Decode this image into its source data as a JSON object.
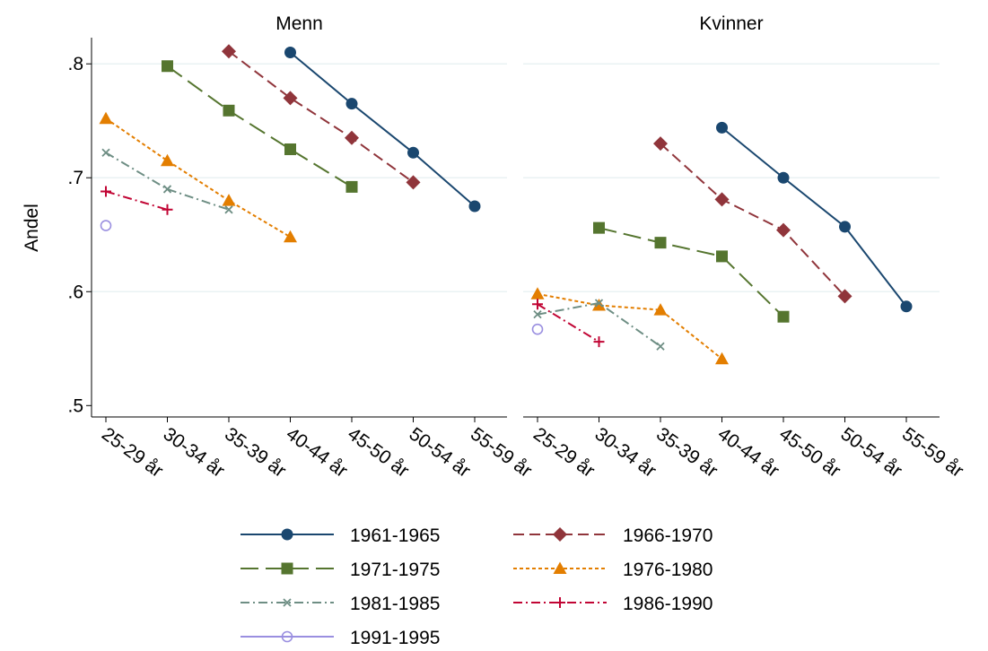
{
  "chart_data": [
    {
      "type": "line",
      "title": "Menn",
      "y_label": "Andel",
      "categories": [
        "25-29 år",
        "30-34 år",
        "35-39 år",
        "40-44 år",
        "45-50 år",
        "50-54 år",
        "55-59 år"
      ],
      "ylim": [
        0.49,
        0.823
      ],
      "yticks": [
        {
          "value": 0.5,
          "label": ".5"
        },
        {
          "value": 0.6,
          "label": ".6"
        },
        {
          "value": 0.7,
          "label": ".7"
        },
        {
          "value": 0.8,
          "label": ".8"
        }
      ],
      "grid": true,
      "series": [
        {
          "name": "1961-1965",
          "color": "#1a476f",
          "marker": "circle",
          "line_style": "solid",
          "values": [
            null,
            null,
            null,
            0.81,
            0.765,
            0.722,
            0.675
          ]
        },
        {
          "name": "1966-1970",
          "color": "#90353b",
          "marker": "diamond",
          "line_style": "dash",
          "values": [
            null,
            null,
            0.811,
            0.77,
            0.735,
            0.696,
            null
          ]
        },
        {
          "name": "1971-1975",
          "color": "#55752f",
          "marker": "square",
          "line_style": "longdash",
          "values": [
            null,
            0.798,
            0.759,
            0.725,
            0.692,
            null,
            null
          ]
        },
        {
          "name": "1976-1980",
          "color": "#e37e00",
          "marker": "triangle",
          "line_style": "shortdash",
          "values": [
            0.752,
            0.715,
            0.68,
            0.648,
            null,
            null,
            null
          ]
        },
        {
          "name": "1981-1985",
          "color": "#6e8e84",
          "marker": "x",
          "line_style": "dashdot",
          "values": [
            0.722,
            0.69,
            0.672,
            null,
            null,
            null,
            null
          ]
        },
        {
          "name": "1986-1990",
          "color": "#c10534",
          "marker": "plus",
          "line_style": "dashdot",
          "values": [
            0.688,
            0.672,
            null,
            null,
            null,
            null,
            null
          ]
        },
        {
          "name": "1991-1995",
          "color": "#9a8fe0",
          "marker": "hollow-circle",
          "line_style": "solid",
          "values": [
            0.658,
            null,
            null,
            null,
            null,
            null,
            null
          ]
        }
      ]
    },
    {
      "type": "line",
      "title": "Kvinner",
      "categories": [
        "25-29 år",
        "30-34 år",
        "35-39 år",
        "40-44 år",
        "45-50 år",
        "50-54 år",
        "55-59 år"
      ],
      "ylim": [
        0.49,
        0.823
      ],
      "yticks": [
        0.5,
        0.6,
        0.7,
        0.8
      ],
      "grid": true,
      "series": [
        {
          "color": "#1a476f",
          "marker": "circle",
          "line_style": "solid",
          "values": [
            null,
            null,
            null,
            0.744,
            0.7,
            0.657,
            0.587
          ]
        },
        {
          "color": "#90353b",
          "marker": "diamond",
          "line_style": "dash",
          "values": [
            null,
            null,
            0.73,
            0.681,
            0.654,
            0.596,
            null
          ]
        },
        {
          "color": "#55752f",
          "marker": "square",
          "line_style": "longdash",
          "values": [
            null,
            0.656,
            0.643,
            0.631,
            0.578,
            null,
            null
          ]
        },
        {
          "color": "#e37e00",
          "marker": "triangle",
          "line_style": "shortdash",
          "values": [
            0.598,
            0.588,
            0.584,
            0.541,
            null,
            null,
            null
          ]
        },
        {
          "color": "#6e8e84",
          "marker": "x",
          "line_style": "dashdot",
          "values": [
            0.58,
            0.59,
            0.552,
            null,
            null,
            null,
            null
          ]
        },
        {
          "color": "#c10534",
          "marker": "plus",
          "line_style": "dashdot",
          "values": [
            0.589,
            0.556,
            null,
            null,
            null,
            null,
            null
          ]
        },
        {
          "color": "#9a8fe0",
          "marker": "hollow-circle",
          "line_style": "solid",
          "values": [
            0.567,
            null,
            null,
            null,
            null,
            null,
            null
          ]
        }
      ]
    }
  ]
}
